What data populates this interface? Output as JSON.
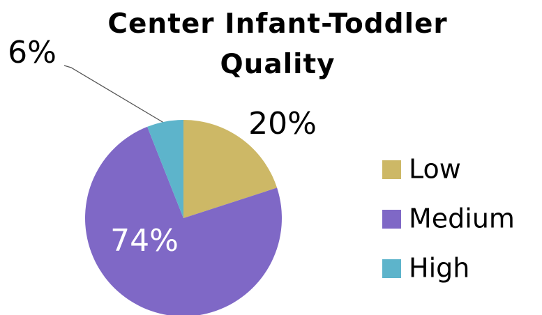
{
  "chart_data": {
    "type": "pie",
    "title": "Center Infant-Toddler Quality",
    "categories": [
      "Low",
      "Medium",
      "High"
    ],
    "values": [
      20,
      74,
      6
    ],
    "value_labels": [
      "20%",
      "74%",
      "6%"
    ],
    "colors": [
      "#cdb866",
      "#7f68c6",
      "#5db4cb"
    ],
    "legend": "right"
  }
}
